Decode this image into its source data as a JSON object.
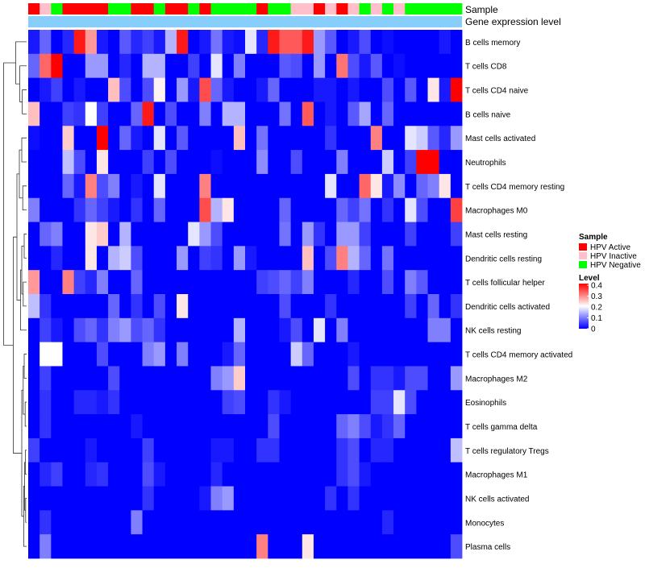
{
  "chart_data": {
    "type": "heatmap",
    "annotation_rows": [
      "Sample",
      "Gene expression level"
    ],
    "legend_sample": {
      "title": "Sample",
      "items": [
        {
          "label": "HPV Active",
          "color": "#ff0000"
        },
        {
          "label": "HPV Inactive",
          "color": "#ffc0cb"
        },
        {
          "label": "HPV Negative",
          "color": "#00ff00"
        }
      ]
    },
    "legend_level": {
      "title": "Level",
      "ticks": [
        "0.4",
        "0.3",
        "0.2",
        "0.1",
        "0"
      ],
      "range": [
        0,
        0.4
      ],
      "colors": {
        "low": "#0000ff",
        "mid": "#ffffff",
        "high": "#ff0000"
      }
    },
    "gene_expression_color": "#87cefa",
    "sample_groups": [
      "Active",
      "Inactive",
      "Negative",
      "Active",
      "Active",
      "Active",
      "Active",
      "Negative",
      "Negative",
      "Active",
      "Active",
      "Negative",
      "Active",
      "Active",
      "Negative",
      "Active",
      "Negative",
      "Negative",
      "Negative",
      "Negative",
      "Active",
      "Negative",
      "Negative",
      "Inactive",
      "Inactive",
      "Active",
      "Inactive",
      "Active",
      "Inactive",
      "Negative",
      "Inactive",
      "Negative",
      "Inactive",
      "Negative",
      "Negative",
      "Negative",
      "Negative",
      "Negative"
    ],
    "rows": [
      {
        "name": "B cells memory",
        "values": [
          0.02,
          0.08,
          0.0,
          0.03,
          0.38,
          0.28,
          0.02,
          0.0,
          0.07,
          0.03,
          0.05,
          0.02,
          0.14,
          0.38,
          0.0,
          0.02,
          0.09,
          0.02,
          0.01,
          0.18,
          0.03,
          0.38,
          0.33,
          0.33,
          0.38,
          0.12,
          0.07,
          0.0,
          0.02,
          0.06,
          0.0,
          0.01,
          0.0,
          0.0,
          0.0,
          0.0,
          0.02,
          0.0
        ]
      },
      {
        "name": "T cells CD8",
        "values": [
          0.08,
          0.32,
          0.4,
          0.0,
          0.0,
          0.12,
          0.12,
          0.0,
          0.03,
          0.0,
          0.14,
          0.14,
          0.0,
          0.0,
          0.05,
          0.0,
          0.18,
          0.0,
          0.1,
          0.0,
          0.0,
          0.0,
          0.07,
          0.06,
          0.0,
          0.12,
          0.0,
          0.31,
          0.06,
          0.02,
          0.07,
          0.0,
          0.01,
          0.0,
          0.0,
          0.0,
          0.0,
          0.0
        ]
      },
      {
        "name": "T cells CD4 naive",
        "values": [
          0.0,
          0.02,
          0.05,
          0.0,
          0.02,
          0.0,
          0.0,
          0.25,
          0.06,
          0.0,
          0.06,
          0.21,
          0.0,
          0.12,
          0.02,
          0.34,
          0.08,
          0.02,
          0.0,
          0.0,
          0.02,
          0.08,
          0.0,
          0.0,
          0.0,
          0.02,
          0.02,
          0.0,
          0.02,
          0.0,
          0.0,
          0.06,
          0.0,
          0.07,
          0.0,
          0.22,
          0.02,
          0.4
        ]
      },
      {
        "name": "B cells naive",
        "values": [
          0.25,
          0.0,
          0.0,
          0.05,
          0.04,
          0.2,
          0.05,
          0.0,
          0.0,
          0.08,
          0.38,
          0.0,
          0.06,
          0.0,
          0.0,
          0.1,
          0.0,
          0.14,
          0.14,
          0.0,
          0.0,
          0.0,
          0.09,
          0.0,
          0.33,
          0.0,
          0.02,
          0.0,
          0.07,
          0.13,
          0.0,
          0.08,
          0.0,
          0.0,
          0.0,
          0.0,
          0.0,
          0.0
        ]
      },
      {
        "name": "Mast cells activated",
        "values": [
          0.01,
          0.0,
          0.0,
          0.24,
          0.0,
          0.0,
          0.4,
          0.0,
          0.08,
          0.02,
          0.0,
          0.18,
          0.0,
          0.07,
          0.0,
          0.0,
          0.0,
          0.0,
          0.25,
          0.0,
          0.09,
          0.0,
          0.0,
          0.0,
          0.0,
          0.0,
          0.04,
          0.0,
          0.0,
          0.0,
          0.3,
          0.0,
          0.0,
          0.18,
          0.16,
          0.07,
          0.03,
          0.12
        ]
      },
      {
        "name": "Neutrophils",
        "values": [
          0.0,
          0.0,
          0.0,
          0.15,
          0.06,
          0.0,
          0.22,
          0.0,
          0.0,
          0.0,
          0.05,
          0.0,
          0.06,
          0.0,
          0.0,
          0.0,
          0.01,
          0.0,
          0.0,
          0.0,
          0.11,
          0.0,
          0.0,
          0.06,
          0.0,
          0.0,
          0.0,
          0.1,
          0.0,
          0.0,
          0.0,
          0.16,
          0.0,
          0.05,
          0.4,
          0.4,
          0.0,
          0.0
        ]
      },
      {
        "name": "T cells CD4 memory resting",
        "values": [
          0.0,
          0.0,
          0.0,
          0.08,
          0.02,
          0.3,
          0.06,
          0.1,
          0.0,
          0.02,
          0.0,
          0.18,
          0.0,
          0.0,
          0.0,
          0.3,
          0.0,
          0.0,
          0.0,
          0.0,
          0.0,
          0.0,
          0.0,
          0.0,
          0.0,
          0.0,
          0.18,
          0.0,
          0.0,
          0.32,
          0.22,
          0.02,
          0.11,
          0.0,
          0.08,
          0.1,
          0.22,
          0.0
        ]
      },
      {
        "name": "Macrophages M0",
        "values": [
          0.1,
          0.0,
          0.0,
          0.0,
          0.04,
          0.08,
          0.05,
          0.02,
          0.0,
          0.04,
          0.0,
          0.08,
          0.0,
          0.0,
          0.0,
          0.34,
          0.14,
          0.22,
          0.0,
          0.0,
          0.0,
          0.0,
          0.08,
          0.0,
          0.0,
          0.0,
          0.0,
          0.08,
          0.05,
          0.09,
          0.0,
          0.04,
          0.0,
          0.18,
          0.06,
          0.0,
          0.0,
          0.35
        ]
      },
      {
        "name": "Mast cells resting",
        "values": [
          0.0,
          0.08,
          0.1,
          0.0,
          0.0,
          0.22,
          0.24,
          0.0,
          0.14,
          0.0,
          0.0,
          0.0,
          0.0,
          0.0,
          0.18,
          0.12,
          0.06,
          0.0,
          0.0,
          0.0,
          0.0,
          0.0,
          0.09,
          0.0,
          0.12,
          0.04,
          0.0,
          0.12,
          0.12,
          0.05,
          0.0,
          0.0,
          0.0,
          0.05,
          0.0,
          0.0,
          0.0,
          0.05
        ]
      },
      {
        "name": "Dendritic cells resting",
        "values": [
          0.0,
          0.0,
          0.03,
          0.0,
          0.0,
          0.22,
          0.0,
          0.14,
          0.16,
          0.06,
          0.0,
          0.0,
          0.0,
          0.12,
          0.0,
          0.05,
          0.04,
          0.0,
          0.12,
          0.02,
          0.0,
          0.0,
          0.0,
          0.0,
          0.25,
          0.0,
          0.06,
          0.3,
          0.14,
          0.08,
          0.0,
          0.09,
          0.0,
          0.0,
          0.0,
          0.0,
          0.0,
          0.0
        ]
      },
      {
        "name": "T cells follicular helper",
        "values": [
          0.28,
          0.0,
          0.0,
          0.3,
          0.05,
          0.03,
          0.1,
          0.0,
          0.0,
          0.08,
          0.0,
          0.0,
          0.0,
          0.0,
          0.0,
          0.0,
          0.0,
          0.0,
          0.0,
          0.0,
          0.05,
          0.06,
          0.08,
          0.05,
          0.1,
          0.0,
          0.0,
          0.0,
          0.03,
          0.0,
          0.0,
          0.06,
          0.0,
          0.1,
          0.07,
          0.0,
          0.0,
          0.0
        ]
      },
      {
        "name": "Dendritic cells activated",
        "values": [
          0.15,
          0.04,
          0.0,
          0.0,
          0.0,
          0.0,
          0.0,
          0.08,
          0.0,
          0.04,
          0.0,
          0.06,
          0.0,
          0.22,
          0.0,
          0.0,
          0.0,
          0.0,
          0.0,
          0.0,
          0.0,
          0.0,
          0.06,
          0.0,
          0.0,
          0.0,
          0.04,
          0.0,
          0.0,
          0.0,
          0.0,
          0.0,
          0.0,
          0.05,
          0.0,
          0.08,
          0.0,
          0.04
        ]
      },
      {
        "name": "NK cells resting",
        "values": [
          0.0,
          0.05,
          0.02,
          0.0,
          0.06,
          0.08,
          0.04,
          0.1,
          0.12,
          0.06,
          0.08,
          0.04,
          0.0,
          0.0,
          0.0,
          0.0,
          0.0,
          0.0,
          0.14,
          0.0,
          0.0,
          0.0,
          0.02,
          0.06,
          0.0,
          0.18,
          0.0,
          0.1,
          0.0,
          0.0,
          0.0,
          0.0,
          0.0,
          0.0,
          0.0,
          0.1,
          0.1,
          0.0
        ]
      },
      {
        "name": "T cells CD4 memory activated",
        "values": [
          0.0,
          0.2,
          0.2,
          0.0,
          0.0,
          0.0,
          0.06,
          0.0,
          0.0,
          0.0,
          0.1,
          0.12,
          0.0,
          0.1,
          0.0,
          0.0,
          0.0,
          0.02,
          0.08,
          0.0,
          0.0,
          0.0,
          0.0,
          0.16,
          0.08,
          0.0,
          0.0,
          0.0,
          0.02,
          0.0,
          0.0,
          0.0,
          0.0,
          0.0,
          0.0,
          0.0,
          0.0,
          0.0
        ]
      },
      {
        "name": "Macrophages M2",
        "values": [
          0.0,
          0.05,
          0.0,
          0.0,
          0.0,
          0.0,
          0.0,
          0.06,
          0.0,
          0.0,
          0.0,
          0.0,
          0.0,
          0.0,
          0.0,
          0.0,
          0.1,
          0.12,
          0.24,
          0.0,
          0.0,
          0.0,
          0.0,
          0.0,
          0.0,
          0.0,
          0.0,
          0.0,
          0.06,
          0.0,
          0.04,
          0.04,
          0.02,
          0.06,
          0.06,
          0.0,
          0.0,
          0.12
        ]
      },
      {
        "name": "Eosinophils",
        "values": [
          0.0,
          0.04,
          0.0,
          0.0,
          0.03,
          0.03,
          0.02,
          0.04,
          0.0,
          0.0,
          0.0,
          0.0,
          0.0,
          0.0,
          0.0,
          0.0,
          0.0,
          0.05,
          0.06,
          0.0,
          0.0,
          0.04,
          0.02,
          0.0,
          0.0,
          0.0,
          0.0,
          0.0,
          0.0,
          0.0,
          0.05,
          0.05,
          0.18,
          0.06,
          0.0,
          0.0,
          0.0,
          0.0
        ]
      },
      {
        "name": "T cells gamma delta",
        "values": [
          0.0,
          0.04,
          0.0,
          0.0,
          0.0,
          0.0,
          0.0,
          0.0,
          0.0,
          0.02,
          0.0,
          0.0,
          0.0,
          0.0,
          0.0,
          0.0,
          0.0,
          0.0,
          0.0,
          0.0,
          0.0,
          0.06,
          0.0,
          0.0,
          0.0,
          0.0,
          0.0,
          0.08,
          0.1,
          0.06,
          0.02,
          0.04,
          0.08,
          0.0,
          0.0,
          0.0,
          0.0,
          0.0
        ]
      },
      {
        "name": "T cells regulatory  Tregs",
        "values": [
          0.05,
          0.0,
          0.0,
          0.0,
          0.0,
          0.02,
          0.0,
          0.0,
          0.0,
          0.0,
          0.05,
          0.0,
          0.0,
          0.0,
          0.0,
          0.0,
          0.02,
          0.02,
          0.0,
          0.0,
          0.04,
          0.04,
          0.0,
          0.0,
          0.0,
          0.0,
          0.0,
          0.04,
          0.06,
          0.0,
          0.03,
          0.03,
          0.0,
          0.0,
          0.0,
          0.0,
          0.0,
          0.15
        ]
      },
      {
        "name": "Macrophages M1",
        "values": [
          0.0,
          0.03,
          0.05,
          0.0,
          0.0,
          0.03,
          0.04,
          0.0,
          0.0,
          0.0,
          0.06,
          0.02,
          0.0,
          0.0,
          0.0,
          0.0,
          0.03,
          0.0,
          0.0,
          0.0,
          0.0,
          0.0,
          0.0,
          0.0,
          0.0,
          0.0,
          0.0,
          0.04,
          0.06,
          0.02,
          0.0,
          0.0,
          0.0,
          0.0,
          0.0,
          0.0,
          0.0,
          0.0
        ]
      },
      {
        "name": "NK cells activated",
        "values": [
          0.0,
          0.0,
          0.0,
          0.0,
          0.0,
          0.0,
          0.0,
          0.0,
          0.0,
          0.0,
          0.04,
          0.0,
          0.0,
          0.0,
          0.0,
          0.02,
          0.1,
          0.12,
          0.0,
          0.0,
          0.0,
          0.0,
          0.0,
          0.0,
          0.0,
          0.0,
          0.04,
          0.0,
          0.04,
          0.0,
          0.0,
          0.0,
          0.0,
          0.0,
          0.0,
          0.0,
          0.0,
          0.0
        ]
      },
      {
        "name": "Monocytes",
        "values": [
          0.0,
          0.04,
          0.0,
          0.0,
          0.0,
          0.0,
          0.0,
          0.0,
          0.0,
          0.1,
          0.0,
          0.0,
          0.0,
          0.0,
          0.0,
          0.0,
          0.0,
          0.0,
          0.0,
          0.0,
          0.0,
          0.0,
          0.0,
          0.0,
          0.0,
          0.0,
          0.0,
          0.0,
          0.0,
          0.0,
          0.0,
          0.03,
          0.0,
          0.0,
          0.0,
          0.0,
          0.0,
          0.0
        ]
      },
      {
        "name": "Plasma cells",
        "values": [
          0.0,
          0.1,
          0.0,
          0.0,
          0.0,
          0.0,
          0.0,
          0.0,
          0.0,
          0.0,
          0.0,
          0.0,
          0.0,
          0.0,
          0.0,
          0.0,
          0.0,
          0.0,
          0.0,
          0.0,
          0.3,
          0.0,
          0.0,
          0.0,
          0.22,
          0.0,
          0.0,
          0.0,
          0.0,
          0.0,
          0.0,
          0.0,
          0.0,
          0.0,
          0.0,
          0.0,
          0.0,
          0.06
        ]
      }
    ]
  }
}
